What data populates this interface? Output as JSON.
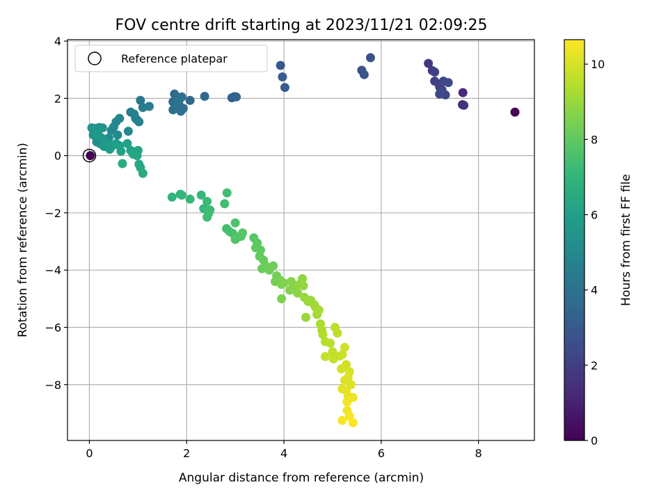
{
  "chart_data": {
    "type": "scatter",
    "title": "FOV centre drift starting at 2023/11/21 02:09:25",
    "xlabel": "Angular distance from reference (arcmin)",
    "ylabel": "Rotation from reference (arcmin)",
    "xlim": [
      -0.45,
      9.15
    ],
    "ylim": [
      -9.95,
      4.05
    ],
    "xticks": [
      0,
      2,
      4,
      6,
      8
    ],
    "yticks": [
      4,
      2,
      0,
      -2,
      -4,
      -6,
      -8
    ],
    "xtick_labels": [
      "0",
      "2",
      "4",
      "6",
      "8"
    ],
    "ytick_labels": [
      "4",
      "2",
      "0",
      "−2",
      "−4",
      "−6",
      "−8"
    ],
    "grid": true,
    "legend": {
      "placement": "top-left",
      "entries": [
        "Reference platepar"
      ]
    },
    "reference_point": {
      "x": 0,
      "y": 0
    },
    "colorbar": {
      "label": "Hours from first FF file",
      "range": [
        0,
        10.65
      ],
      "ticks": [
        0,
        2,
        4,
        6,
        8,
        10
      ],
      "tick_labels": [
        "0",
        "2",
        "4",
        "6",
        "8",
        "10"
      ],
      "colormap": [
        "#440154",
        "#482878",
        "#3e4989",
        "#31688e",
        "#26828e",
        "#1f9e89",
        "#35b779",
        "#6ece58",
        "#b5de2b",
        "#fde725"
      ]
    },
    "points": [
      [
        8.75,
        1.52,
        0.1
      ],
      [
        7.68,
        2.2,
        1.3
      ],
      [
        7.67,
        1.78,
        1.4
      ],
      [
        7.7,
        1.76,
        1.5
      ],
      [
        6.97,
        3.22,
        1.8
      ],
      [
        7.05,
        2.97,
        1.9
      ],
      [
        7.1,
        2.92,
        2.0
      ],
      [
        7.1,
        2.6,
        2.05
      ],
      [
        7.2,
        2.4,
        2.1
      ],
      [
        7.25,
        2.3,
        2.15
      ],
      [
        7.2,
        2.15,
        2.2
      ],
      [
        7.32,
        2.12,
        2.25
      ],
      [
        7.28,
        2.6,
        2.3
      ],
      [
        7.38,
        2.55,
        2.35
      ],
      [
        7.22,
        2.2,
        2.4
      ],
      [
        5.78,
        3.42,
        2.7
      ],
      [
        5.6,
        2.98,
        2.8
      ],
      [
        5.65,
        2.83,
        2.85
      ],
      [
        3.93,
        3.15,
        3.0
      ],
      [
        3.97,
        2.75,
        3.1
      ],
      [
        4.02,
        2.38,
        3.15
      ],
      [
        2.93,
        2.02,
        3.3
      ],
      [
        2.98,
        2.06,
        3.35
      ],
      [
        3.02,
        2.05,
        3.4
      ],
      [
        2.37,
        2.07,
        3.5
      ],
      [
        2.07,
        1.93,
        3.6
      ],
      [
        1.75,
        2.15,
        3.7
      ],
      [
        1.72,
        1.88,
        3.75
      ],
      [
        1.72,
        1.6,
        3.8
      ],
      [
        1.85,
        1.75,
        3.85
      ],
      [
        1.88,
        1.55,
        3.9
      ],
      [
        1.93,
        1.65,
        3.95
      ],
      [
        1.9,
        2.05,
        4.0
      ],
      [
        1.85,
        1.95,
        4.05
      ],
      [
        1.8,
        1.82,
        4.1
      ],
      [
        1.05,
        1.93,
        4.3
      ],
      [
        1.1,
        1.68,
        4.4
      ],
      [
        1.23,
        1.72,
        4.45
      ],
      [
        0.85,
        1.52,
        4.55
      ],
      [
        0.92,
        1.45,
        4.6
      ],
      [
        0.95,
        1.3,
        4.65
      ],
      [
        1.02,
        1.18,
        4.7
      ],
      [
        0.98,
        1.25,
        4.75
      ],
      [
        0.62,
        1.3,
        4.85
      ],
      [
        0.55,
        1.18,
        4.9
      ],
      [
        0.5,
        1.0,
        4.95
      ],
      [
        0.45,
        0.88,
        5.0
      ],
      [
        0.8,
        0.85,
        5.05
      ],
      [
        0.58,
        0.72,
        5.1
      ],
      [
        0.4,
        0.62,
        5.15
      ],
      [
        0.3,
        0.52,
        5.2
      ],
      [
        0.22,
        0.42,
        5.25
      ],
      [
        0.15,
        0.48,
        5.3
      ],
      [
        0.2,
        0.98,
        5.35
      ],
      [
        0.27,
        0.97,
        5.4
      ],
      [
        0.12,
        0.95,
        5.45
      ],
      [
        0.05,
        0.97,
        5.5
      ],
      [
        0.08,
        0.72,
        5.55
      ],
      [
        0.18,
        0.75,
        5.6
      ],
      [
        0.25,
        0.62,
        5.65
      ],
      [
        0.3,
        0.32,
        5.7
      ],
      [
        0.35,
        0.45,
        5.75
      ],
      [
        0.42,
        0.22,
        5.8
      ],
      [
        0.48,
        0.35,
        5.85
      ],
      [
        0.55,
        0.42,
        5.9
      ],
      [
        0.62,
        0.35,
        5.95
      ],
      [
        0.65,
        0.15,
        6.0
      ],
      [
        0.78,
        0.42,
        6.05
      ],
      [
        0.85,
        0.18,
        6.1
      ],
      [
        0.92,
        0.12,
        6.15
      ],
      [
        1.0,
        0.18,
        6.2
      ],
      [
        0.98,
        0.0,
        6.25
      ],
      [
        0.9,
        0.05,
        6.3
      ],
      [
        1.02,
        -0.3,
        6.35
      ],
      [
        1.05,
        -0.42,
        6.4
      ],
      [
        1.1,
        -0.62,
        6.45
      ],
      [
        0.68,
        -0.28,
        6.5
      ],
      [
        1.7,
        -1.45,
        6.9
      ],
      [
        1.87,
        -1.35,
        6.95
      ],
      [
        1.9,
        -1.38,
        7.0
      ],
      [
        2.07,
        -1.52,
        7.05
      ],
      [
        2.3,
        -1.38,
        7.1
      ],
      [
        2.35,
        -1.85,
        7.15
      ],
      [
        2.42,
        -1.6,
        7.2
      ],
      [
        2.45,
        -2.02,
        7.25
      ],
      [
        2.42,
        -2.15,
        7.3
      ],
      [
        2.48,
        -1.9,
        7.3
      ],
      [
        2.78,
        -1.68,
        7.35
      ],
      [
        2.83,
        -1.3,
        7.4
      ],
      [
        2.82,
        -2.55,
        7.45
      ],
      [
        2.88,
        -2.65,
        7.5
      ],
      [
        2.95,
        -2.72,
        7.55
      ],
      [
        3.0,
        -2.35,
        7.6
      ],
      [
        3.05,
        -2.85,
        7.65
      ],
      [
        3.0,
        -2.93,
        7.7
      ],
      [
        3.12,
        -2.82,
        7.75
      ],
      [
        3.15,
        -2.7,
        7.8
      ],
      [
        3.38,
        -2.87,
        7.85
      ],
      [
        3.45,
        -3.05,
        7.9
      ],
      [
        3.42,
        -3.22,
        7.95
      ],
      [
        3.52,
        -3.3,
        8.0
      ],
      [
        3.5,
        -3.52,
        8.05
      ],
      [
        3.58,
        -3.65,
        8.1
      ],
      [
        3.55,
        -3.95,
        8.15
      ],
      [
        3.62,
        -3.85,
        8.2
      ],
      [
        3.7,
        -4.0,
        8.25
      ],
      [
        3.78,
        -3.85,
        8.3
      ],
      [
        3.85,
        -4.2,
        8.35
      ],
      [
        3.82,
        -4.4,
        8.4
      ],
      [
        3.92,
        -4.35,
        8.45
      ],
      [
        3.95,
        -4.5,
        8.5
      ],
      [
        4.0,
        -4.45,
        8.55
      ],
      [
        3.95,
        -5.0,
        8.55
      ],
      [
        4.12,
        -4.7,
        8.6
      ],
      [
        4.15,
        -4.4,
        8.65
      ],
      [
        4.2,
        -4.6,
        8.7
      ],
      [
        4.28,
        -4.8,
        8.75
      ],
      [
        4.32,
        -4.5,
        8.8
      ],
      [
        4.38,
        -4.3,
        8.85
      ],
      [
        4.4,
        -4.55,
        8.9
      ],
      [
        4.42,
        -4.95,
        8.95
      ],
      [
        4.5,
        -5.1,
        9.0
      ],
      [
        4.45,
        -5.65,
        9.0
      ],
      [
        4.55,
        -5.05,
        9.05
      ],
      [
        4.62,
        -5.2,
        9.1
      ],
      [
        4.65,
        -5.3,
        9.15
      ],
      [
        4.68,
        -5.55,
        9.2
      ],
      [
        4.72,
        -5.4,
        9.25
      ],
      [
        4.75,
        -5.88,
        9.3
      ],
      [
        4.78,
        -6.1,
        9.35
      ],
      [
        4.8,
        -6.25,
        9.4
      ],
      [
        4.85,
        -6.5,
        9.45
      ],
      [
        4.95,
        -6.55,
        9.5
      ],
      [
        5.05,
        -6.0,
        9.55
      ],
      [
        5.1,
        -6.2,
        9.6
      ],
      [
        5.0,
        -6.85,
        9.65
      ],
      [
        5.02,
        -7.1,
        9.7
      ],
      [
        4.85,
        -7.02,
        9.75
      ],
      [
        5.15,
        -7.0,
        9.75
      ],
      [
        5.2,
        -6.95,
        9.8
      ],
      [
        5.25,
        -6.7,
        9.85
      ],
      [
        5.28,
        -7.3,
        9.9
      ],
      [
        5.18,
        -7.45,
        9.95
      ],
      [
        5.35,
        -7.55,
        10.0
      ],
      [
        5.25,
        -7.85,
        10.05
      ],
      [
        5.32,
        -7.75,
        10.1
      ],
      [
        5.38,
        -8.0,
        10.15
      ],
      [
        5.2,
        -8.15,
        10.2
      ],
      [
        5.28,
        -8.2,
        10.25
      ],
      [
        5.32,
        -8.4,
        10.3
      ],
      [
        5.42,
        -8.45,
        10.35
      ],
      [
        5.3,
        -8.6,
        10.4
      ],
      [
        5.3,
        -8.9,
        10.45
      ],
      [
        5.35,
        -9.1,
        10.5
      ],
      [
        5.2,
        -9.25,
        10.55
      ],
      [
        5.42,
        -9.33,
        10.6
      ],
      [
        0.02,
        0.0,
        0.0
      ]
    ]
  }
}
